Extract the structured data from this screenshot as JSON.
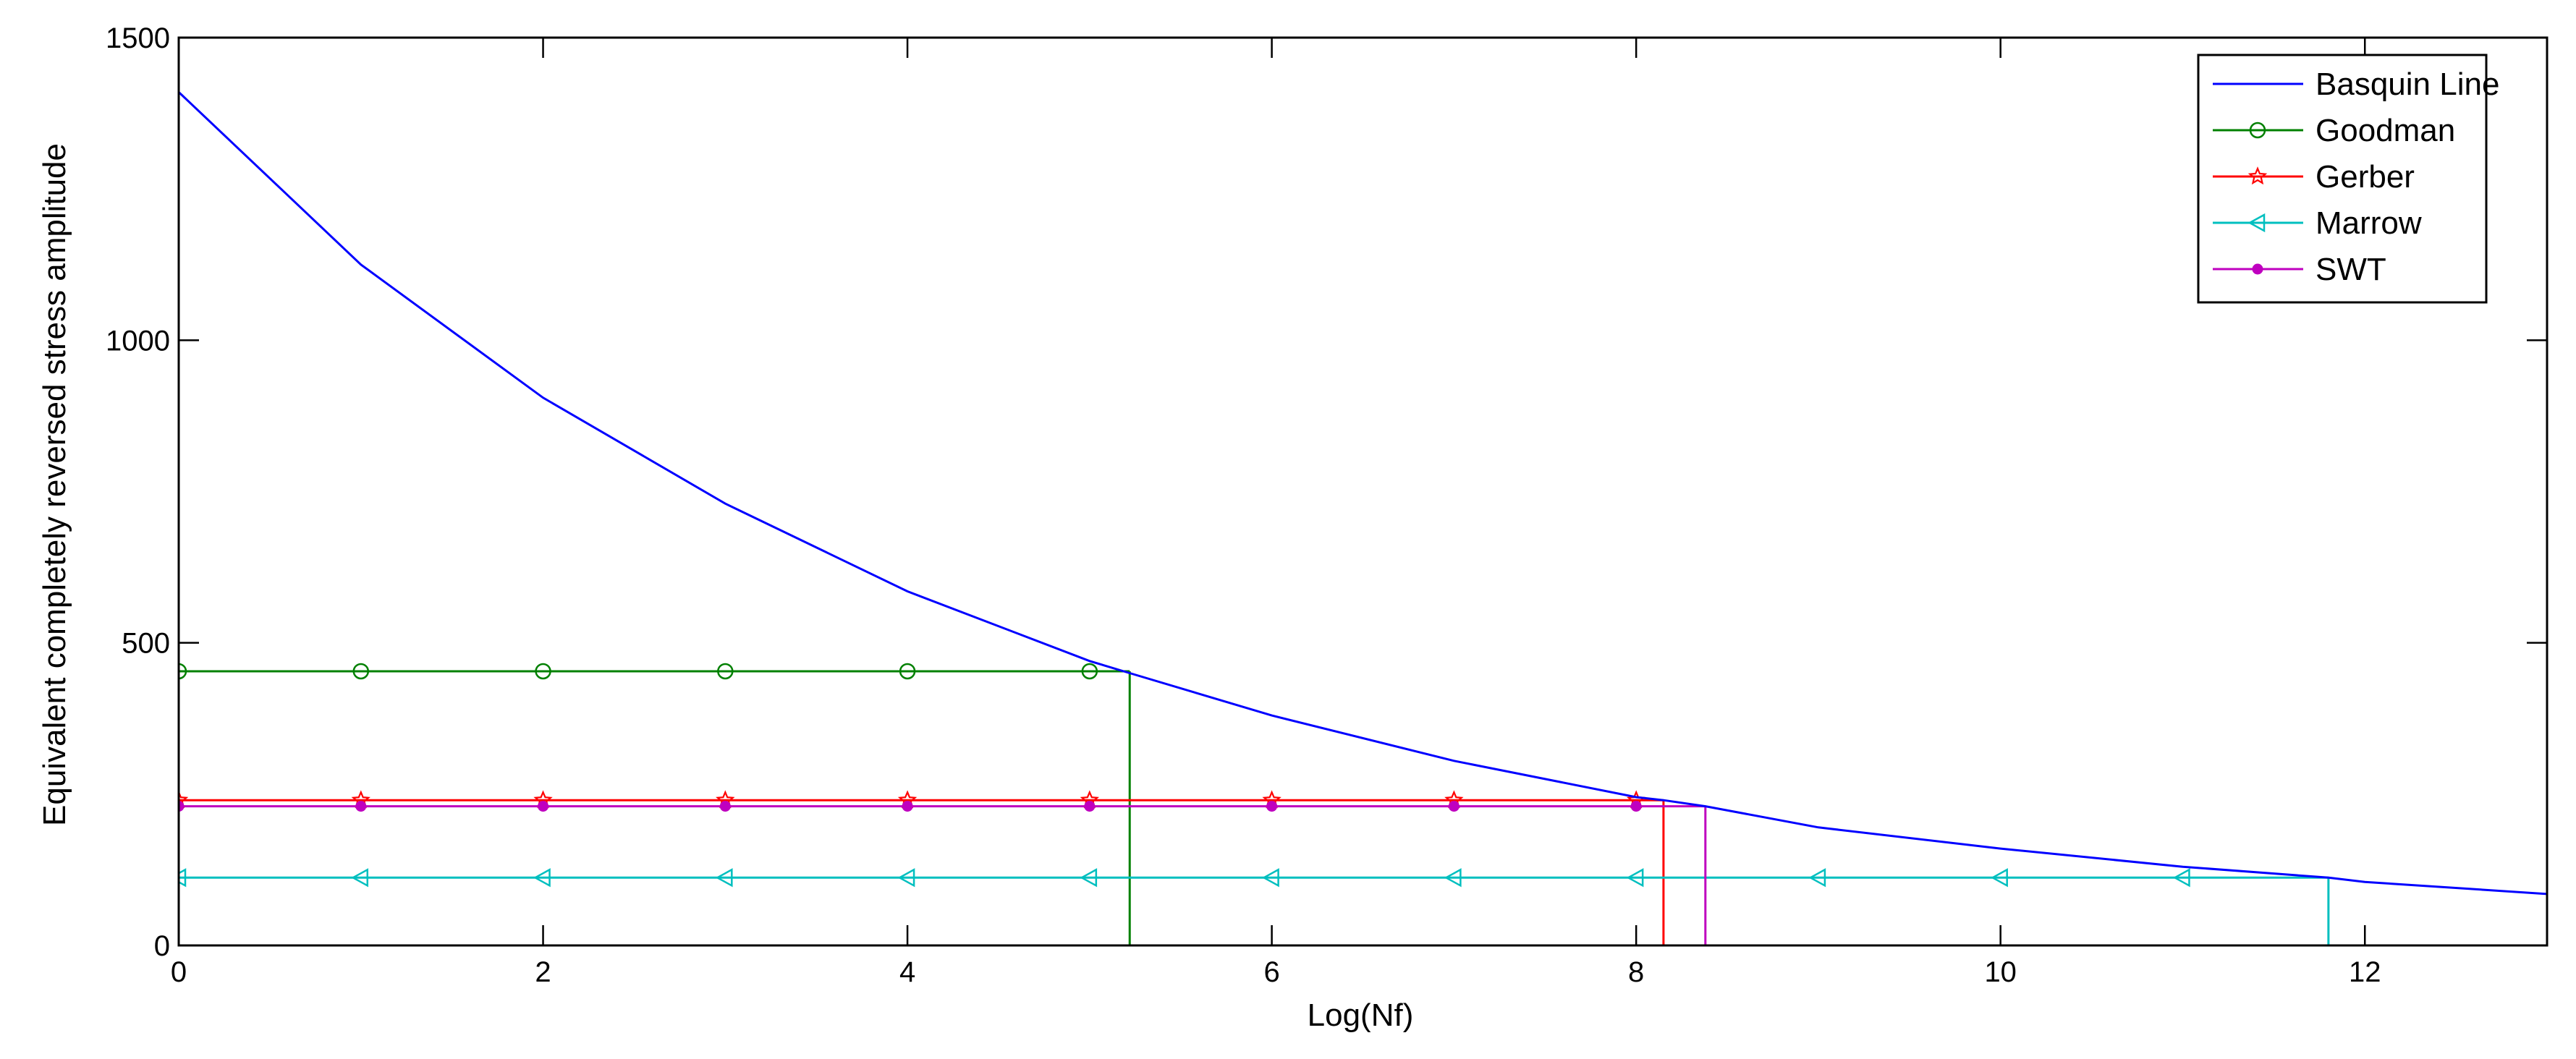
{
  "chart_data": {
    "type": "line",
    "title": "",
    "xlabel": "Log(Nf)",
    "ylabel": "Equivalent completely reversed stress amplitude",
    "xlim": [
      0,
      13
    ],
    "ylim": [
      0,
      1500
    ],
    "xticks": [
      0,
      2,
      4,
      6,
      8,
      10,
      12
    ],
    "yticks": [
      0,
      500,
      1000,
      1500
    ],
    "grid": false,
    "legend_position": "top-right",
    "series": [
      {
        "name": "Basquin Line",
        "color": "#0000ff",
        "marker": "none",
        "x": [
          0,
          1,
          2,
          3,
          4,
          5,
          5.22,
          6,
          7,
          8,
          8.15,
          8.38,
          9,
          10,
          11,
          11.8,
          12,
          13
        ],
        "y": [
          1410,
          1125,
          905,
          730,
          585,
          470,
          450,
          380,
          305,
          245,
          240,
          230,
          195,
          160,
          130,
          112,
          105,
          85
        ]
      },
      {
        "name": "Goodman",
        "color": "#008000",
        "marker": "circle",
        "marker_x": [
          0,
          1,
          2,
          3,
          4,
          5
        ],
        "y_level": 453,
        "intersect_x": 5.22
      },
      {
        "name": "Gerber",
        "color": "#ff0000",
        "marker": "star",
        "marker_x": [
          0,
          1,
          2,
          3,
          4,
          5,
          6,
          7,
          8
        ],
        "y_level": 240,
        "intersect_x": 8.15
      },
      {
        "name": "Marrow",
        "color": "#00bfbf",
        "marker": "triangle-left",
        "marker_x": [
          0,
          1,
          2,
          3,
          4,
          5,
          6,
          7,
          8,
          9,
          10,
          11
        ],
        "y_level": 112,
        "intersect_x": 11.8
      },
      {
        "name": "SWT",
        "color": "#bf00bf",
        "marker": "dot",
        "marker_x": [
          0,
          1,
          2,
          3,
          4,
          5,
          6,
          7,
          8
        ],
        "y_level": 230,
        "intersect_x": 8.38
      }
    ]
  }
}
